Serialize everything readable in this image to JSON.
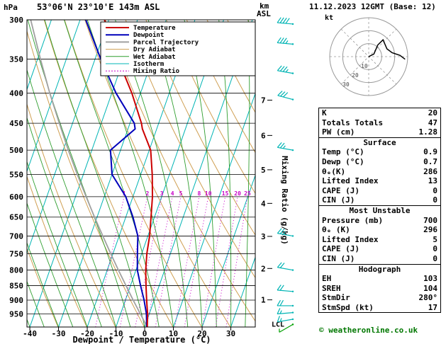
{
  "date_header": "11.12.2023 12GMT (Base: 12)",
  "footer": "© weatheronline.co.uk",
  "colors": {
    "temperature": "#cc0000",
    "dewpoint": "#0000bb",
    "parcel": "#a0a0a0",
    "dry_adiabat": "#cf9f52",
    "wet_adiabat": "#2f9e2f",
    "isotherm": "#00b4b4",
    "mixing_ratio": "#c800c8",
    "wind_barb": "#00b4b4",
    "surface_barb": "#00a000",
    "hodo_ring": "#999999"
  },
  "legend": [
    {
      "label": "Temperature",
      "color": "#cc0000",
      "width": 2,
      "dash": ""
    },
    {
      "label": "Dewpoint",
      "color": "#0000bb",
      "width": 2,
      "dash": ""
    },
    {
      "label": "Parcel Trajectory",
      "color": "#a0a0a0",
      "width": 2,
      "dash": ""
    },
    {
      "label": "Dry Adiabat",
      "color": "#cf9f52",
      "width": 1,
      "dash": ""
    },
    {
      "label": "Wet Adiabat",
      "color": "#2f9e2f",
      "width": 1,
      "dash": ""
    },
    {
      "label": "Isotherm",
      "color": "#00b4b4",
      "width": 1,
      "dash": ""
    },
    {
      "label": "Mixing Ratio",
      "color": "#c800c8",
      "width": 1,
      "dash": "2 2"
    }
  ],
  "chart_data": [
    {
      "type": "skewt",
      "title": "53°06'N 23°10'E 143m ASL",
      "xlabel": "Dewpoint / Temperature (°C)",
      "ylabel": "hPa",
      "y2label": [
        "km",
        "ASL"
      ],
      "mixing_axis_label": "Mixing Ratio (g/kg)",
      "pressure_range": [
        300,
        1000
      ],
      "pressure_ticks": [
        300,
        350,
        400,
        450,
        500,
        550,
        600,
        650,
        700,
        750,
        800,
        850,
        900,
        950
      ],
      "temp_ticks": [
        -40,
        -30,
        -20,
        -10,
        0,
        10,
        20,
        30
      ],
      "series": {
        "temperature": [
          [
            1000,
            0.9
          ],
          [
            950,
            -0.6
          ],
          [
            900,
            -2.6
          ],
          [
            850,
            -4.6
          ],
          [
            800,
            -6.6
          ],
          [
            750,
            -8.2
          ],
          [
            700,
            -9.4
          ],
          [
            650,
            -11.2
          ],
          [
            600,
            -13.2
          ],
          [
            550,
            -16.0
          ],
          [
            500,
            -19.5
          ],
          [
            460,
            -25.0
          ],
          [
            450,
            -26.0
          ],
          [
            400,
            -33.0
          ],
          [
            350,
            -42.0
          ],
          [
            300,
            -51.5
          ]
        ],
        "dewpoint": [
          [
            1000,
            0.7
          ],
          [
            950,
            -1.0
          ],
          [
            900,
            -3.5
          ],
          [
            850,
            -6.5
          ],
          [
            800,
            -9.5
          ],
          [
            750,
            -11.5
          ],
          [
            700,
            -13.5
          ],
          [
            650,
            -17.5
          ],
          [
            600,
            -22.5
          ],
          [
            550,
            -30.0
          ],
          [
            500,
            -33.5
          ],
          [
            460,
            -27.5
          ],
          [
            450,
            -28.5
          ],
          [
            400,
            -38.5
          ],
          [
            350,
            -48.0
          ],
          [
            300,
            -58.0
          ]
        ],
        "parcel": [
          [
            1000,
            0.9
          ],
          [
            950,
            -3.1
          ],
          [
            900,
            -7.3
          ],
          [
            850,
            -11.6
          ],
          [
            800,
            -16.1
          ],
          [
            750,
            -20.8
          ],
          [
            700,
            -25.7
          ],
          [
            650,
            -30.9
          ],
          [
            600,
            -36.3
          ],
          [
            550,
            -42.1
          ],
          [
            500,
            -48.2
          ],
          [
            450,
            -54.6
          ],
          [
            400,
            -61.6
          ],
          [
            350,
            -69.0
          ],
          [
            300,
            -77.2
          ]
        ]
      },
      "mixing_ratio_gkg": [
        1,
        2,
        3,
        4,
        5,
        8,
        10,
        15,
        20,
        25
      ],
      "km_ticks": [
        {
          "km": 1,
          "pressure": 899
        },
        {
          "km": 2,
          "pressure": 795
        },
        {
          "km": 3,
          "pressure": 701
        },
        {
          "km": 4,
          "pressure": 616
        },
        {
          "km": 5,
          "pressure": 540
        },
        {
          "km": 6,
          "pressure": 472
        },
        {
          "km": 7,
          "pressure": 411
        }
      ],
      "lcl": {
        "label": "LCL",
        "pressure": 988
      },
      "wind_barbs": [
        {
          "pressure": 990,
          "speed_kt": 5,
          "dir_deg": 240,
          "color": "surface"
        },
        {
          "pressure": 970,
          "speed_kt": 15,
          "dir_deg": 260
        },
        {
          "pressure": 945,
          "speed_kt": 15,
          "dir_deg": 265
        },
        {
          "pressure": 920,
          "speed_kt": 20,
          "dir_deg": 270
        },
        {
          "pressure": 870,
          "speed_kt": 20,
          "dir_deg": 275
        },
        {
          "pressure": 800,
          "speed_kt": 20,
          "dir_deg": 280
        },
        {
          "pressure": 700,
          "speed_kt": 25,
          "dir_deg": 280
        },
        {
          "pressure": 500,
          "speed_kt": 25,
          "dir_deg": 280
        },
        {
          "pressure": 410,
          "speed_kt": 30,
          "dir_deg": 285
        },
        {
          "pressure": 370,
          "speed_kt": 35,
          "dir_deg": 280
        },
        {
          "pressure": 330,
          "speed_kt": 35,
          "dir_deg": 275
        },
        {
          "pressure": 305,
          "speed_kt": 40,
          "dir_deg": 275
        }
      ]
    },
    {
      "type": "hodograph",
      "unit": "kt",
      "rings_kt": [
        10,
        20,
        30
      ],
      "trace_uv_kt": [
        [
          0,
          0
        ],
        [
          4,
          2
        ],
        [
          7,
          9
        ],
        [
          11,
          13
        ],
        [
          14,
          6
        ],
        [
          18,
          3
        ],
        [
          24,
          1
        ],
        [
          28,
          -2
        ]
      ]
    }
  ],
  "panel": {
    "top_rows": [
      [
        "K",
        "20"
      ],
      [
        "Totals Totals",
        "47"
      ],
      [
        "PW (cm)",
        "1.28"
      ]
    ],
    "sections": [
      {
        "header": "Surface",
        "rows": [
          [
            "Temp (°C)",
            "0.9"
          ],
          [
            "Dewp (°C)",
            "0.7"
          ],
          [
            "θₑ(K)",
            "286"
          ],
          [
            "Lifted Index",
            "13"
          ],
          [
            "CAPE (J)",
            "0"
          ],
          [
            "CIN (J)",
            "0"
          ]
        ]
      },
      {
        "header": "Most Unstable",
        "rows": [
          [
            "Pressure (mb)",
            "700"
          ],
          [
            "θₑ (K)",
            "296"
          ],
          [
            "Lifted Index",
            "5"
          ],
          [
            "CAPE (J)",
            "0"
          ],
          [
            "CIN (J)",
            "0"
          ]
        ]
      },
      {
        "header": "Hodograph",
        "rows": [
          [
            "EH",
            "103"
          ],
          [
            "SREH",
            "104"
          ],
          [
            "StmDir",
            "280°"
          ],
          [
            "StmSpd (kt)",
            "17"
          ]
        ]
      }
    ]
  }
}
